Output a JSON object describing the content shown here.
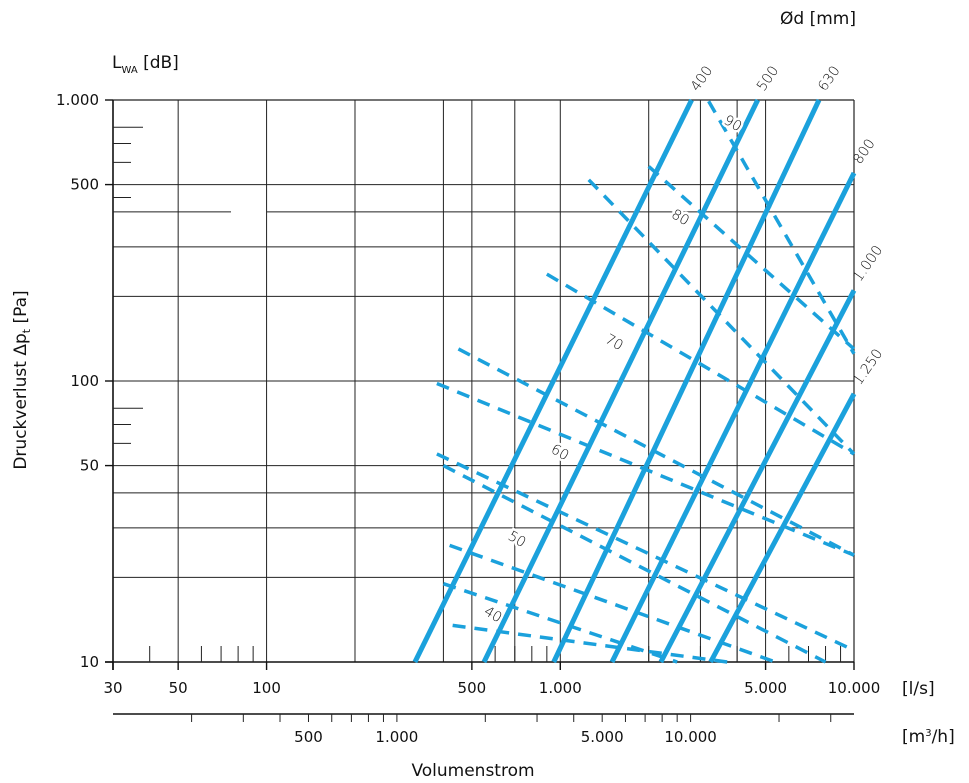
{
  "chart_data": {
    "type": "line",
    "title": "",
    "xlabel": "Volumenstrom",
    "ylabel": "Druckverlust Δpt [Pa]",
    "ylabel_main": "Druckverlust Δp",
    "ylabel_sub": "t",
    "ylabel_unit": " [Pa]",
    "db_axis_label_main": "L",
    "db_axis_label_sub": "WA",
    "db_axis_label_unit": " [dB]",
    "diameter_axis_label": "Ød [mm]",
    "x_unit_ls": "[l/s]",
    "x_unit_m3h_main": "[m",
    "x_unit_m3h_sup": "3",
    "x_unit_m3h_tail": "/h]",
    "x_scale": "log",
    "y_scale": "log",
    "xlim": [
      30,
      10000
    ],
    "ylim": [
      10,
      1000
    ],
    "grid": true,
    "x_ticks": [
      30,
      50,
      100,
      500,
      1000,
      5000,
      10000
    ],
    "x_tick_labels": [
      "30",
      "50",
      "100",
      "500",
      "1.000",
      "5.000",
      "10.000"
    ],
    "y_ticks": [
      10,
      50,
      100,
      500,
      1000
    ],
    "y_tick_labels": [
      "10",
      "50",
      "100",
      "500",
      "1.000"
    ],
    "m3h_ticks": [
      500,
      1000,
      5000,
      10000
    ],
    "m3h_tick_labels": [
      "500",
      "1.000",
      "5.000",
      "10.000"
    ],
    "line_color": "#1ba1dc",
    "series": [
      {
        "name": "400",
        "x": [
          320,
          2800
        ],
        "y": [
          10,
          1000
        ]
      },
      {
        "name": "500",
        "x": [
          550,
          4700
        ],
        "y": [
          10,
          1000
        ]
      },
      {
        "name": "630",
        "x": [
          950,
          7600
        ],
        "y": [
          10,
          1000
        ]
      },
      {
        "name": "800",
        "x": [
          1500,
          10000
        ],
        "y": [
          10,
          550
        ]
      },
      {
        "name": "1.000",
        "x": [
          2200,
          10000
        ],
        "y": [
          10,
          210
        ]
      },
      {
        "name": "1.250",
        "x": [
          3250,
          10000
        ],
        "y": [
          10,
          90
        ]
      }
    ],
    "sound_power_lines": [
      {
        "label": "40",
        "x": [
          430,
          3700
        ],
        "y": [
          13.5,
          10
        ]
      },
      {
        "label": "50",
        "x": [
          420,
          5400
        ],
        "y": [
          26,
          10
        ]
      },
      {
        "label": "60",
        "x": [
          380,
          10000
        ],
        "y": [
          55,
          11
        ]
      },
      {
        "label": "70",
        "x": [
          450,
          10000
        ],
        "y": [
          130,
          24
        ]
      },
      {
        "label": "80",
        "x": [
          1250,
          10000
        ],
        "y": [
          520,
          55
        ]
      },
      {
        "label": "90",
        "x": [
          3200,
          10000
        ],
        "y": [
          990,
          125
        ]
      },
      {
        "label": "",
        "x": [
          2000,
          10000
        ],
        "y": [
          580,
          130
        ]
      },
      {
        "label": "",
        "x": [
          900,
          10000
        ],
        "y": [
          240,
          55
        ]
      },
      {
        "label": "",
        "x": [
          380,
          10000
        ],
        "y": [
          98,
          24
        ]
      },
      {
        "label": "",
        "x": [
          400,
          8000
        ],
        "y": [
          50,
          10
        ]
      },
      {
        "label": "",
        "x": [
          400,
          2500
        ],
        "y": [
          19,
          10
        ]
      }
    ],
    "sound_power_label_positions": [
      {
        "x": 580,
        "y": 14.3
      },
      {
        "x": 700,
        "y": 26.5
      },
      {
        "x": 980,
        "y": 54
      },
      {
        "x": 1500,
        "y": 133
      },
      {
        "x": 2520,
        "y": 370
      },
      {
        "x": 3800,
        "y": 800
      }
    ],
    "diameter_label_positions": [
      {
        "x": 2800,
        "y": 1000
      },
      {
        "x": 4700,
        "y": 1000
      },
      {
        "x": 7600,
        "y": 1000
      },
      {
        "x": 10000,
        "y": 550
      },
      {
        "x": 10000,
        "y": 210
      },
      {
        "x": 10000,
        "y": 90
      }
    ]
  }
}
